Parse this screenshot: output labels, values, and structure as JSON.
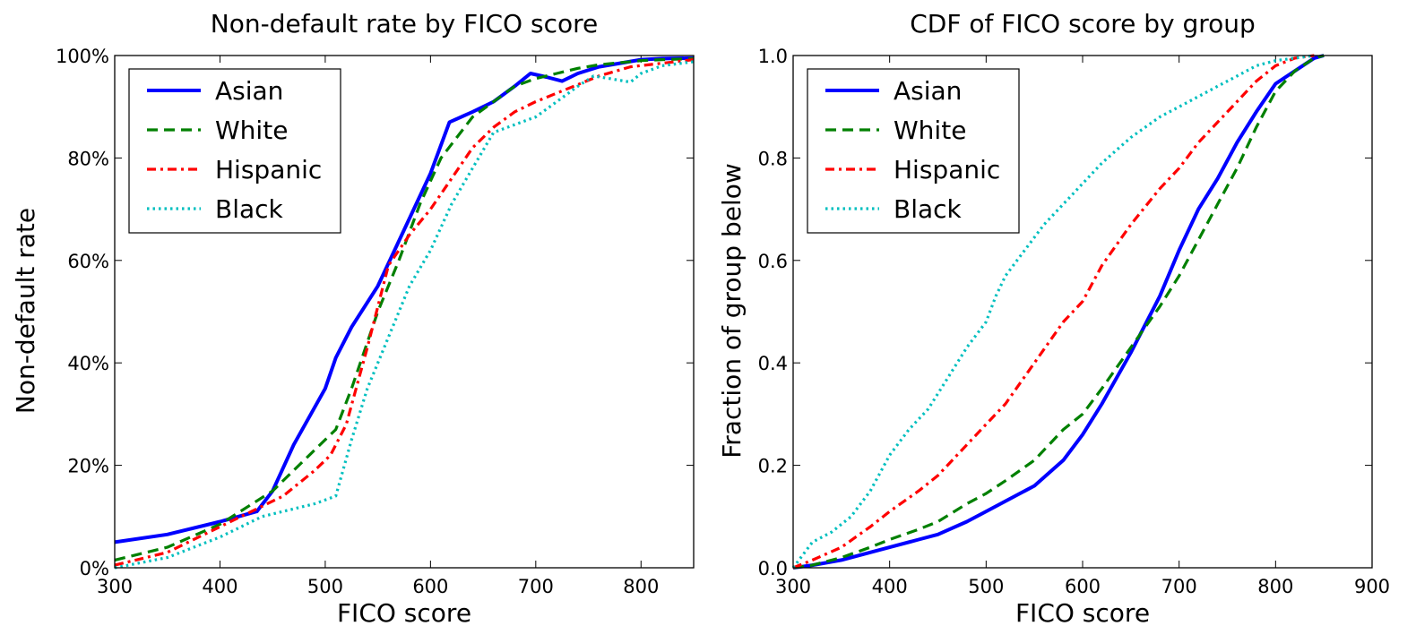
{
  "chart_data": [
    {
      "type": "line",
      "title": "Non-default rate by FICO score",
      "xlabel": "FICO score",
      "ylabel": "Non-default rate",
      "xlim": [
        300,
        850
      ],
      "ylim": [
        0,
        100
      ],
      "xticks": [
        300,
        400,
        500,
        600,
        700,
        800
      ],
      "yticks": [
        0,
        20,
        40,
        60,
        80,
        100
      ],
      "x_tick_labels": [
        "300",
        "400",
        "500",
        "600",
        "700",
        "800"
      ],
      "y_tick_labels": [
        "0%",
        "20%",
        "40%",
        "60%",
        "80%",
        "100%"
      ],
      "legend_position": "top-left",
      "grid": false,
      "series": [
        {
          "name": "Asian",
          "color": "#0000ff",
          "style": "solid",
          "x": [
            300,
            350,
            400,
            435,
            450,
            470,
            500,
            510,
            525,
            550,
            575,
            600,
            618,
            640,
            660,
            680,
            695,
            710,
            725,
            740,
            760,
            780,
            800,
            820,
            850
          ],
          "y": [
            5,
            6.5,
            9,
            11,
            15,
            24,
            35,
            41,
            47,
            55,
            66,
            77,
            87,
            89,
            91,
            94,
            96.5,
            95.8,
            95,
            96.5,
            97.8,
            98.5,
            99.2,
            99.4,
            99.5
          ]
        },
        {
          "name": "White",
          "color": "#008000",
          "style": "dashed",
          "x": [
            300,
            350,
            400,
            450,
            480,
            500,
            510,
            525,
            550,
            570,
            590,
            610,
            625,
            640,
            660,
            680,
            700,
            720,
            740,
            760,
            780,
            800,
            820,
            850
          ],
          "y": [
            1.5,
            4,
            8.5,
            15,
            21,
            25,
            27,
            35,
            50,
            60,
            71,
            80,
            84,
            88,
            91,
            94,
            95.5,
            96.5,
            97.5,
            98.2,
            98.6,
            99,
            99.2,
            99.4
          ]
        },
        {
          "name": "Hispanic",
          "color": "#ff0000",
          "style": "dashdot",
          "x": [
            300,
            350,
            400,
            435,
            460,
            490,
            505,
            520,
            540,
            560,
            580,
            600,
            620,
            640,
            660,
            680,
            700,
            730,
            760,
            790,
            820,
            850
          ],
          "y": [
            0.5,
            3,
            8,
            11.5,
            14,
            19,
            22,
            28,
            43,
            59,
            65,
            70,
            76,
            82,
            86,
            89,
            91,
            93.5,
            96,
            97.8,
            98.5,
            99.2
          ]
        },
        {
          "name": "Black",
          "color": "#00bfbf",
          "style": "dotted",
          "x": [
            300,
            350,
            400,
            440,
            470,
            490,
            510,
            525,
            540,
            560,
            580,
            600,
            620,
            640,
            660,
            680,
            700,
            720,
            740,
            755,
            770,
            790,
            800,
            820,
            850
          ],
          "y": [
            0,
            2,
            6,
            10,
            11.5,
            12.5,
            14,
            25,
            35,
            45,
            55,
            62,
            71,
            78,
            85,
            86.5,
            88,
            91,
            94,
            96,
            95.5,
            94.8,
            96.5,
            98,
            98.8
          ]
        }
      ]
    },
    {
      "type": "line",
      "title": "CDF of FICO score by group",
      "xlabel": "FICO score",
      "ylabel": "Fraction of group below",
      "xlim": [
        300,
        900
      ],
      "ylim": [
        0,
        1
      ],
      "xticks": [
        300,
        400,
        500,
        600,
        700,
        800,
        900
      ],
      "yticks": [
        0,
        0.2,
        0.4,
        0.6,
        0.8,
        1.0
      ],
      "x_tick_labels": [
        "300",
        "400",
        "500",
        "600",
        "700",
        "800",
        "900"
      ],
      "y_tick_labels": [
        "0.0",
        "0.2",
        "0.4",
        "0.6",
        "0.8",
        "1.0"
      ],
      "legend_position": "top-left",
      "grid": false,
      "series": [
        {
          "name": "Asian",
          "color": "#0000ff",
          "style": "solid",
          "x": [
            300,
            320,
            350,
            380,
            400,
            430,
            450,
            480,
            500,
            520,
            550,
            580,
            600,
            620,
            650,
            680,
            700,
            720,
            740,
            760,
            780,
            800,
            820,
            840,
            850
          ],
          "y": [
            0,
            0.005,
            0.015,
            0.03,
            0.04,
            0.055,
            0.065,
            0.09,
            0.11,
            0.13,
            0.16,
            0.21,
            0.26,
            0.32,
            0.42,
            0.53,
            0.62,
            0.7,
            0.76,
            0.83,
            0.89,
            0.945,
            0.97,
            0.995,
            1.0
          ]
        },
        {
          "name": "White",
          "color": "#008000",
          "style": "dashed",
          "x": [
            300,
            320,
            350,
            380,
            400,
            430,
            450,
            480,
            500,
            520,
            550,
            580,
            600,
            620,
            650,
            680,
            700,
            720,
            740,
            760,
            780,
            800,
            820,
            840,
            850
          ],
          "y": [
            0,
            0.005,
            0.02,
            0.04,
            0.055,
            0.075,
            0.09,
            0.125,
            0.145,
            0.17,
            0.21,
            0.27,
            0.3,
            0.35,
            0.43,
            0.51,
            0.57,
            0.64,
            0.71,
            0.78,
            0.86,
            0.93,
            0.97,
            0.995,
            1.0
          ]
        },
        {
          "name": "Hispanic",
          "color": "#ff0000",
          "style": "dashdot",
          "x": [
            300,
            320,
            350,
            380,
            400,
            430,
            450,
            480,
            500,
            520,
            550,
            580,
            600,
            620,
            650,
            680,
            700,
            720,
            740,
            760,
            780,
            800,
            820,
            840
          ],
          "y": [
            0,
            0.015,
            0.04,
            0.08,
            0.11,
            0.15,
            0.18,
            0.24,
            0.28,
            0.32,
            0.4,
            0.48,
            0.52,
            0.59,
            0.67,
            0.74,
            0.78,
            0.83,
            0.87,
            0.91,
            0.95,
            0.98,
            0.995,
            1.0
          ]
        },
        {
          "name": "Black",
          "color": "#00bfbf",
          "style": "dotted",
          "x": [
            300,
            320,
            340,
            360,
            380,
            400,
            420,
            440,
            460,
            480,
            500,
            510,
            520,
            540,
            560,
            580,
            600,
            620,
            650,
            680,
            700,
            720,
            740,
            760,
            780,
            800,
            820,
            840
          ],
          "y": [
            0,
            0.05,
            0.07,
            0.1,
            0.15,
            0.22,
            0.27,
            0.31,
            0.37,
            0.43,
            0.48,
            0.53,
            0.57,
            0.62,
            0.67,
            0.71,
            0.75,
            0.79,
            0.84,
            0.88,
            0.9,
            0.92,
            0.94,
            0.96,
            0.98,
            0.99,
            0.995,
            1.0
          ]
        }
      ]
    }
  ]
}
